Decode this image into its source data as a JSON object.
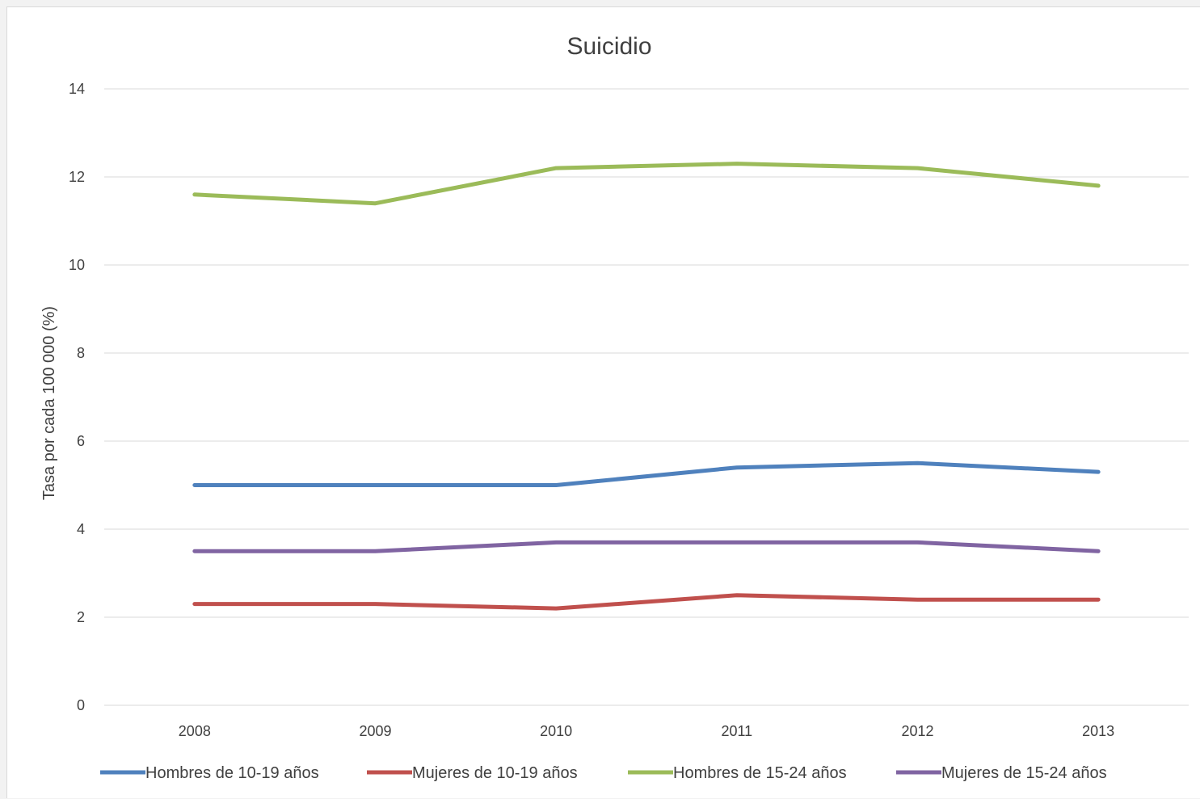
{
  "chart_data": {
    "type": "line",
    "title": "Suicidio",
    "xlabel": "",
    "ylabel": "Tasa por cada 100 000 (%)",
    "categories": [
      "2008",
      "2009",
      "2010",
      "2011",
      "2012",
      "2013"
    ],
    "ylim": [
      0,
      14
    ],
    "yticks": [
      0,
      2,
      4,
      6,
      8,
      10,
      12,
      14
    ],
    "grid": true,
    "legend_position": "bottom",
    "series": [
      {
        "name": "Hombres de 10-19 años",
        "color": "#4f81bd",
        "values": [
          5.0,
          5.0,
          5.0,
          5.4,
          5.5,
          5.3
        ]
      },
      {
        "name": "Mujeres de 10-19 años",
        "color": "#c0504d",
        "values": [
          2.3,
          2.3,
          2.2,
          2.5,
          2.4,
          2.4
        ]
      },
      {
        "name": "Hombres de 15-24 años",
        "color": "#9bbb59",
        "values": [
          11.6,
          11.4,
          12.2,
          12.3,
          12.2,
          11.8
        ]
      },
      {
        "name": "Mujeres de 15-24 años",
        "color": "#8064a2",
        "values": [
          3.5,
          3.5,
          3.7,
          3.7,
          3.7,
          3.5
        ]
      }
    ]
  }
}
